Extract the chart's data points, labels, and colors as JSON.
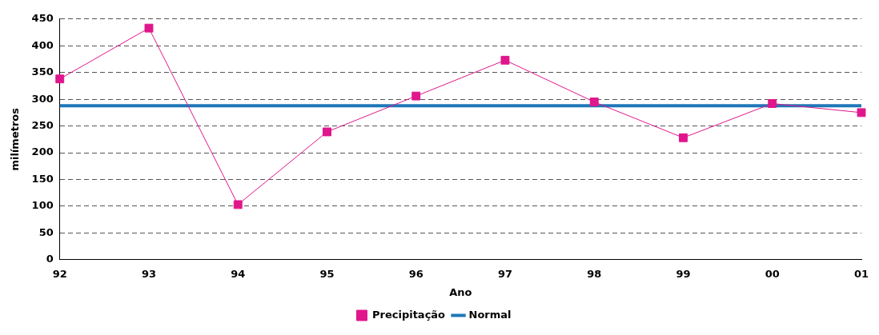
{
  "chart_data": {
    "type": "line",
    "xlabel": "Ano",
    "ylabel": "milímetros",
    "categories": [
      "92",
      "93",
      "94",
      "95",
      "96",
      "97",
      "98",
      "99",
      "00",
      "01"
    ],
    "series": [
      {
        "name": "Precipitação",
        "color": "#e0168c",
        "marker": "square",
        "values": [
          338,
          433,
          103,
          239,
          306,
          373,
          295,
          228,
          292,
          275
        ]
      },
      {
        "name": "Normal",
        "color": "#1f77b8",
        "marker": "none",
        "values": [
          288,
          288,
          288,
          288,
          288,
          288,
          288,
          288,
          288,
          288
        ]
      }
    ],
    "ylim": [
      0,
      450
    ],
    "yticks": [
      0,
      50,
      100,
      150,
      200,
      250,
      300,
      350,
      400,
      450
    ],
    "grid": "y",
    "legend": "bottom"
  }
}
